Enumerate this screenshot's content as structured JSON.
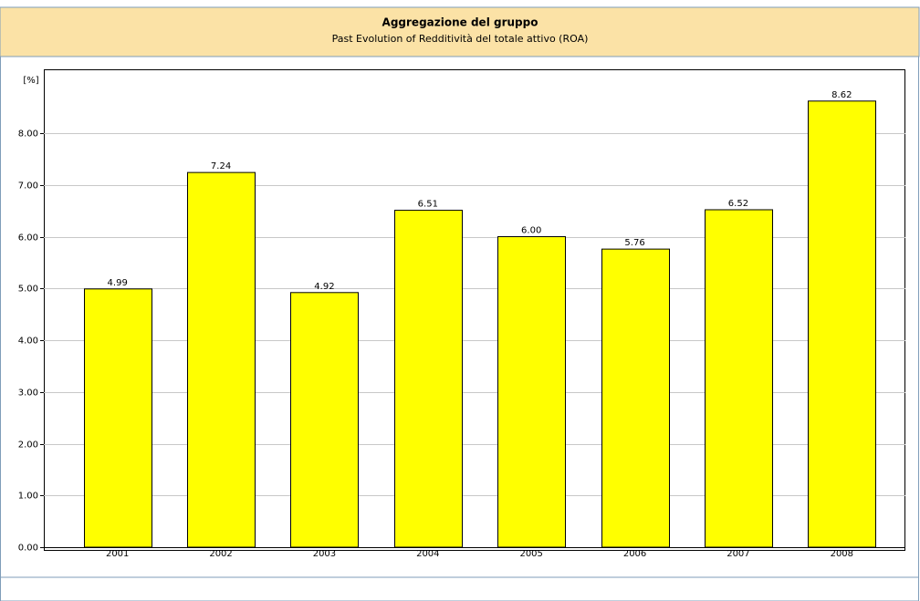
{
  "chart_data": {
    "type": "bar",
    "title": "Aggregazione del gruppo",
    "subtitle": "Past Evolution of Redditività del totale attivo (ROA)",
    "y_label": "[%]",
    "categories": [
      "2001",
      "2002",
      "2003",
      "2004",
      "2005",
      "2006",
      "2007",
      "2008"
    ],
    "values": [
      4.99,
      7.24,
      4.92,
      6.51,
      6.0,
      5.76,
      6.52,
      8.62
    ],
    "value_labels": [
      "4.99",
      "7.24",
      "4.92",
      "6.51",
      "6.00",
      "5.76",
      "6.52",
      "8.62"
    ],
    "color": "#ffff00",
    "ylim": [
      0,
      9.2
    ],
    "yticks": [
      {
        "value": 0,
        "label": "0.00"
      },
      {
        "value": 1,
        "label": "1.00"
      },
      {
        "value": 2,
        "label": "2.00"
      },
      {
        "value": 3,
        "label": "3.00"
      },
      {
        "value": 4,
        "label": "4.00"
      },
      {
        "value": 5,
        "label": "5.00"
      },
      {
        "value": 6,
        "label": "6.00"
      },
      {
        "value": 7,
        "label": "7.00"
      },
      {
        "value": 8,
        "label": "8.00"
      }
    ],
    "grid": true
  }
}
